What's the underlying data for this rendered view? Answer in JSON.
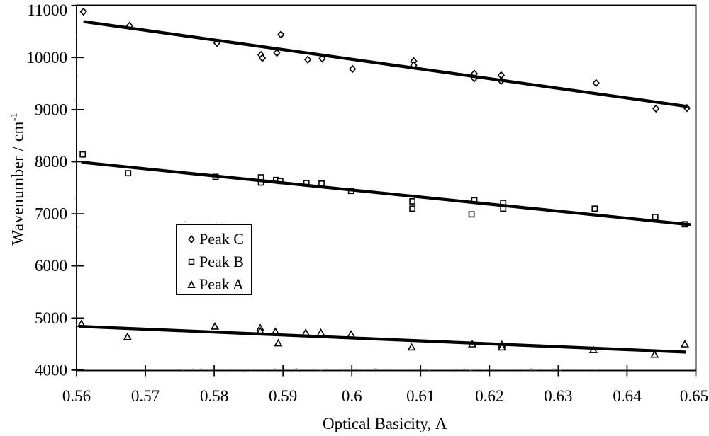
{
  "figure": {
    "description": "Scanned black-and-white scatter plot of peak wavenumbers versus optical basicity with linear fit lines for three peaks",
    "background": "#ffffff",
    "ink_color": "#000000"
  },
  "chart_data": {
    "type": "scatter",
    "title": "",
    "xlabel": "Optical Basicity, Λ",
    "ylabel": "Wavenumber / cm",
    "ylabel_superscript": "-1",
    "xlim": [
      0.56,
      0.65
    ],
    "ylim": [
      4000,
      11000
    ],
    "grid": false,
    "x_ticks": [
      {
        "value": 0.56,
        "label": "0.56"
      },
      {
        "value": 0.57,
        "label": "0.57"
      },
      {
        "value": 0.58,
        "label": "0.58"
      },
      {
        "value": 0.59,
        "label": "0.59"
      },
      {
        "value": 0.6,
        "label": "0.6"
      },
      {
        "value": 0.61,
        "label": "0.61"
      },
      {
        "value": 0.62,
        "label": "0.62"
      },
      {
        "value": 0.63,
        "label": "0.63"
      },
      {
        "value": 0.64,
        "label": "0.64"
      },
      {
        "value": 0.65,
        "label": "0.65"
      }
    ],
    "y_ticks": [
      {
        "value": 4000,
        "label": "4000"
      },
      {
        "value": 5000,
        "label": "5000"
      },
      {
        "value": 6000,
        "label": "6000"
      },
      {
        "value": 7000,
        "label": "7000"
      },
      {
        "value": 8000,
        "label": "8000"
      },
      {
        "value": 9000,
        "label": "9000"
      },
      {
        "value": 10000,
        "label": "10000"
      },
      {
        "value": 11000,
        "label": "11000"
      }
    ],
    "legend": {
      "position": "inside-upper-left-of-lower-band",
      "entries": [
        "Peak C",
        "Peak B",
        "Peak A"
      ]
    },
    "series": [
      {
        "name": "Peak C",
        "marker": "diamond",
        "points": [
          [
            0.561,
            10880
          ],
          [
            0.5677,
            10610
          ],
          [
            0.5804,
            10280
          ],
          [
            0.5868,
            10050
          ],
          [
            0.587,
            9990
          ],
          [
            0.5891,
            10090
          ],
          [
            0.5897,
            10440
          ],
          [
            0.5936,
            9960
          ],
          [
            0.5957,
            9980
          ],
          [
            0.6001,
            9780
          ],
          [
            0.609,
            9930
          ],
          [
            0.609,
            9850
          ],
          [
            0.6178,
            9690
          ],
          [
            0.6178,
            9600
          ],
          [
            0.6217,
            9660
          ],
          [
            0.6217,
            9550
          ],
          [
            0.6355,
            9510
          ],
          [
            0.6442,
            9020
          ],
          [
            0.6487,
            9030
          ]
        ],
        "fit_line": {
          "x": [
            0.561,
            0.6488
          ],
          "y": [
            10690,
            9060
          ]
        }
      },
      {
        "name": "Peak B",
        "marker": "square",
        "points": [
          [
            0.5609,
            8140
          ],
          [
            0.5675,
            7780
          ],
          [
            0.5802,
            7710
          ],
          [
            0.5868,
            7700
          ],
          [
            0.5868,
            7600
          ],
          [
            0.589,
            7650
          ],
          [
            0.5896,
            7630
          ],
          [
            0.5934,
            7590
          ],
          [
            0.5956,
            7580
          ],
          [
            0.5999,
            7440
          ],
          [
            0.6088,
            7240
          ],
          [
            0.6088,
            7100
          ],
          [
            0.6174,
            6990
          ],
          [
            0.6178,
            7260
          ],
          [
            0.622,
            7210
          ],
          [
            0.622,
            7100
          ],
          [
            0.6353,
            7100
          ],
          [
            0.6441,
            6940
          ],
          [
            0.6484,
            6800
          ]
        ],
        "fit_line": {
          "x": [
            0.5607,
            0.6493
          ],
          "y": [
            7990,
            6790
          ]
        }
      },
      {
        "name": "Peak A",
        "marker": "triangle",
        "points": [
          [
            0.5607,
            4890
          ],
          [
            0.5674,
            4640
          ],
          [
            0.5801,
            4840
          ],
          [
            0.5867,
            4810
          ],
          [
            0.5867,
            4750
          ],
          [
            0.5889,
            4740
          ],
          [
            0.5893,
            4520
          ],
          [
            0.5933,
            4720
          ],
          [
            0.5955,
            4720
          ],
          [
            0.5999,
            4690
          ],
          [
            0.6087,
            4440
          ],
          [
            0.6175,
            4500
          ],
          [
            0.6218,
            4490
          ],
          [
            0.6218,
            4440
          ],
          [
            0.6351,
            4390
          ],
          [
            0.644,
            4300
          ],
          [
            0.6484,
            4500
          ]
        ],
        "fit_line": {
          "x": [
            0.5604,
            0.6486
          ],
          "y": [
            4840,
            4345
          ]
        }
      }
    ]
  }
}
